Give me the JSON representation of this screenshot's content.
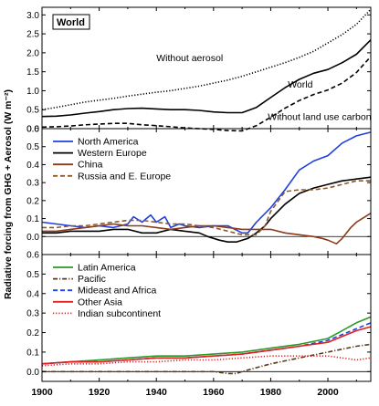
{
  "chart_data": {
    "type": "line",
    "ylabel": "Radiative forcing from GHG + Aerosol (W m⁻²)",
    "x_ticks": [
      1900,
      1920,
      1940,
      1960,
      1980,
      2000
    ],
    "xlim": [
      1900,
      2015
    ],
    "panels": [
      {
        "id": "world",
        "box_label": "World",
        "ylim": [
          0,
          3.2
        ],
        "y_ticks": [
          0.0,
          0.5,
          1.0,
          1.5,
          2.0,
          2.5,
          3.0
        ],
        "legend": "none",
        "series": [
          {
            "name": "Without aerosol",
            "color": "#000000",
            "dash": "dot",
            "x": [
              1900,
              1905,
              1910,
              1915,
              1920,
              1925,
              1930,
              1935,
              1940,
              1945,
              1950,
              1955,
              1960,
              1965,
              1970,
              1975,
              1980,
              1985,
              1990,
              1995,
              2000,
              2005,
              2010,
              2015
            ],
            "y": [
              0.5,
              0.56,
              0.63,
              0.7,
              0.75,
              0.8,
              0.86,
              0.91,
              0.96,
              1.0,
              1.06,
              1.12,
              1.2,
              1.28,
              1.38,
              1.5,
              1.62,
              1.74,
              1.88,
              2.04,
              2.26,
              2.48,
              2.75,
              3.15
            ]
          },
          {
            "name": "World",
            "color": "#000000",
            "dash": "solid",
            "x": [
              1900,
              1905,
              1910,
              1915,
              1920,
              1925,
              1930,
              1935,
              1940,
              1945,
              1950,
              1955,
              1960,
              1965,
              1970,
              1975,
              1980,
              1985,
              1990,
              1995,
              2000,
              2005,
              2010,
              2015
            ],
            "y": [
              0.32,
              0.33,
              0.36,
              0.41,
              0.45,
              0.5,
              0.53,
              0.54,
              0.52,
              0.5,
              0.5,
              0.48,
              0.44,
              0.42,
              0.42,
              0.56,
              0.82,
              1.08,
              1.3,
              1.46,
              1.56,
              1.74,
              1.96,
              2.34
            ]
          },
          {
            "name": "Without land use carbon",
            "color": "#000000",
            "dash": "dash",
            "x": [
              1900,
              1905,
              1910,
              1915,
              1920,
              1925,
              1930,
              1935,
              1940,
              1945,
              1950,
              1955,
              1960,
              1965,
              1970,
              1975,
              1980,
              1985,
              1990,
              1995,
              2000,
              2005,
              2010,
              2015
            ],
            "y": [
              0.04,
              0.05,
              0.07,
              0.1,
              0.12,
              0.14,
              0.14,
              0.1,
              0.08,
              0.05,
              0.02,
              0.0,
              -0.02,
              -0.05,
              -0.06,
              0.08,
              0.3,
              0.54,
              0.74,
              0.9,
              1.02,
              1.2,
              1.48,
              1.9
            ]
          }
        ],
        "annotations": [
          {
            "text": "Without aerosol",
            "x": 1940,
            "y": 1.78
          },
          {
            "text": "World",
            "x": 1986,
            "y": 1.08
          },
          {
            "text": "Without land use carbon",
            "x": 1979,
            "y": 0.23
          }
        ]
      },
      {
        "id": "regions-1",
        "ylim": [
          -0.1,
          0.6
        ],
        "y_ticks": [
          0.0,
          0.1,
          0.2,
          0.3,
          0.4,
          0.5,
          0.6
        ],
        "legend": "top-left",
        "series": [
          {
            "name": "North America",
            "color": "#1f3fe0",
            "dash": "solid",
            "x": [
              1900,
              1905,
              1910,
              1915,
              1920,
              1925,
              1930,
              1932,
              1935,
              1938,
              1940,
              1943,
              1945,
              1948,
              1950,
              1955,
              1960,
              1965,
              1970,
              1972,
              1975,
              1980,
              1985,
              1990,
              1995,
              2000,
              2005,
              2010,
              2015
            ],
            "y": [
              0.08,
              0.07,
              0.06,
              0.05,
              0.06,
              0.05,
              0.07,
              0.11,
              0.08,
              0.12,
              0.08,
              0.11,
              0.05,
              0.07,
              0.06,
              0.05,
              0.06,
              0.06,
              0.02,
              0.02,
              0.08,
              0.16,
              0.26,
              0.37,
              0.42,
              0.45,
              0.52,
              0.56,
              0.58
            ]
          },
          {
            "name": "Western Europe",
            "color": "#000000",
            "dash": "solid",
            "x": [
              1900,
              1905,
              1910,
              1915,
              1920,
              1925,
              1930,
              1935,
              1940,
              1945,
              1950,
              1955,
              1958,
              1962,
              1965,
              1968,
              1970,
              1972,
              1975,
              1978,
              1980,
              1985,
              1990,
              1995,
              2000,
              2005,
              2010,
              2015
            ],
            "y": [
              0.02,
              0.02,
              0.03,
              0.03,
              0.03,
              0.04,
              0.04,
              0.02,
              0.02,
              0.04,
              0.03,
              0.02,
              0.0,
              -0.02,
              -0.03,
              -0.03,
              -0.02,
              -0.01,
              0.02,
              0.06,
              0.1,
              0.18,
              0.24,
              0.27,
              0.29,
              0.31,
              0.32,
              0.33
            ]
          },
          {
            "name": "China",
            "color": "#8b3a1a",
            "dash": "solid",
            "x": [
              1900,
              1905,
              1910,
              1915,
              1920,
              1925,
              1930,
              1935,
              1940,
              1945,
              1950,
              1955,
              1960,
              1965,
              1970,
              1975,
              1980,
              1985,
              1990,
              1995,
              1998,
              2000,
              2003,
              2005,
              2008,
              2010,
              2015
            ],
            "y": [
              0.03,
              0.03,
              0.04,
              0.05,
              0.06,
              0.07,
              0.06,
              0.06,
              0.05,
              0.04,
              0.05,
              0.06,
              0.06,
              0.05,
              0.04,
              0.04,
              0.04,
              0.02,
              0.01,
              0.0,
              -0.01,
              -0.02,
              -0.04,
              -0.01,
              0.05,
              0.08,
              0.13
            ]
          },
          {
            "name": "Russia and E. Europe",
            "color": "#8b5a2b",
            "dash": "dash",
            "x": [
              1900,
              1905,
              1910,
              1915,
              1920,
              1925,
              1930,
              1935,
              1940,
              1945,
              1950,
              1955,
              1960,
              1965,
              1970,
              1975,
              1978,
              1980,
              1985,
              1990,
              1995,
              2000,
              2005,
              2010,
              2015
            ],
            "y": [
              0.05,
              0.05,
              0.06,
              0.06,
              0.07,
              0.08,
              0.09,
              0.09,
              0.08,
              0.07,
              0.07,
              0.06,
              0.05,
              0.03,
              0.01,
              0.01,
              0.06,
              0.14,
              0.25,
              0.26,
              0.26,
              0.27,
              0.29,
              0.31,
              0.31
            ]
          }
        ]
      },
      {
        "id": "regions-2",
        "ylim": [
          -0.05,
          0.6
        ],
        "y_ticks": [
          0.0,
          0.1,
          0.2,
          0.3,
          0.4,
          0.5,
          0.6
        ],
        "legend": "top-left",
        "series": [
          {
            "name": "Latin America",
            "color": "#2a9a2a",
            "dash": "solid",
            "x": [
              1900,
              1910,
              1920,
              1930,
              1940,
              1950,
              1960,
              1970,
              1980,
              1990,
              2000,
              2005,
              2010,
              2015
            ],
            "y": [
              0.04,
              0.05,
              0.06,
              0.07,
              0.08,
              0.08,
              0.09,
              0.1,
              0.12,
              0.14,
              0.17,
              0.21,
              0.25,
              0.28
            ]
          },
          {
            "name": "Pacific",
            "color": "#5a3a1a",
            "dash": "dashdot",
            "x": [
              1900,
              1910,
              1920,
              1930,
              1940,
              1950,
              1960,
              1965,
              1968,
              1970,
              1975,
              1980,
              1990,
              2000,
              2010,
              2015
            ],
            "y": [
              0.0,
              0.0,
              0.0,
              0.0,
              0.0,
              0.0,
              0.0,
              -0.01,
              -0.01,
              0.0,
              0.02,
              0.04,
              0.07,
              0.1,
              0.13,
              0.14
            ]
          },
          {
            "name": "Mideast and Africa",
            "color": "#1f3fe0",
            "dash": "dash",
            "x": [
              1900,
              1910,
              1920,
              1930,
              1940,
              1950,
              1960,
              1970,
              1980,
              1990,
              2000,
              2005,
              2010,
              2015
            ],
            "y": [
              0.04,
              0.05,
              0.05,
              0.06,
              0.07,
              0.07,
              0.08,
              0.09,
              0.11,
              0.13,
              0.16,
              0.19,
              0.22,
              0.25
            ]
          },
          {
            "name": "Other Asia",
            "color": "#e02020",
            "dash": "solid",
            "x": [
              1900,
              1910,
              1920,
              1930,
              1940,
              1950,
              1960,
              1970,
              1980,
              1990,
              2000,
              2005,
              2010,
              2015
            ],
            "y": [
              0.04,
              0.05,
              0.05,
              0.06,
              0.07,
              0.07,
              0.08,
              0.09,
              0.11,
              0.13,
              0.15,
              0.18,
              0.21,
              0.23
            ]
          },
          {
            "name": "Indian subcontinent",
            "color": "#e02020",
            "dash": "dot",
            "x": [
              1900,
              1910,
              1920,
              1930,
              1940,
              1950,
              1960,
              1970,
              1980,
              1990,
              2000,
              2005,
              2010,
              2015
            ],
            "y": [
              0.03,
              0.04,
              0.04,
              0.05,
              0.05,
              0.06,
              0.06,
              0.07,
              0.08,
              0.08,
              0.08,
              0.07,
              0.06,
              0.07
            ]
          }
        ]
      }
    ]
  }
}
